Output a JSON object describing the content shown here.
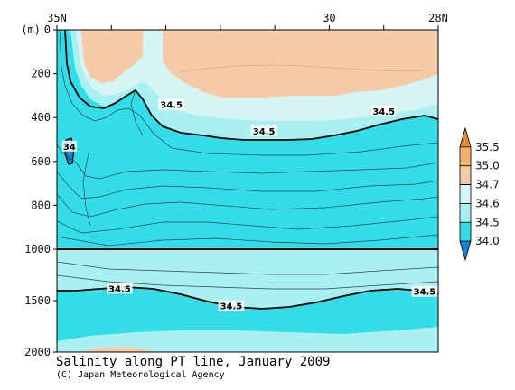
{
  "chart_data": {
    "type": "heatmap",
    "title": "Salinity along PT line, January 2009",
    "credit": "(C) Japan Meteorological Agency",
    "x_axis": {
      "ticks": [
        {
          "label": "35N",
          "value": 35
        },
        {
          "label": "30",
          "value": 30
        },
        {
          "label": "28N",
          "value": 28
        }
      ],
      "range": [
        35,
        28
      ]
    },
    "y_axis": {
      "unit": "(m)",
      "upper_ticks": [
        "0",
        "200",
        "400",
        "600",
        "800",
        "1000"
      ],
      "lower_ticks": [
        "1500",
        "2000"
      ],
      "upper_range": [
        0,
        1000
      ],
      "lower_range": [
        1000,
        2000
      ],
      "break_depth": 1000
    },
    "colorbar": {
      "levels": [
        "35.5",
        "35.0",
        "34.7",
        "34.6",
        "34.5",
        "34.0"
      ],
      "colors": [
        "#e08c3c",
        "#f2b070",
        "#f5cba7",
        "#d5f5f5",
        "#a9f0f0",
        "#33dde8",
        "#1a80d0"
      ]
    },
    "contour_labels": [
      {
        "text": "34.5",
        "lat": 32.9,
        "depth": 340
      },
      {
        "text": "34.5",
        "lat": 31.2,
        "depth": 460
      },
      {
        "text": "34.5",
        "lat": 29.0,
        "depth": 370
      },
      {
        "text": "34",
        "lat": 34.77,
        "depth": 530
      },
      {
        "text": "34.5",
        "lat": 33.85,
        "depth": 1380
      },
      {
        "text": "34.5",
        "lat": 31.8,
        "depth": 1550
      },
      {
        "text": "34.5",
        "lat": 28.25,
        "depth": 1410
      }
    ],
    "grid": false
  }
}
